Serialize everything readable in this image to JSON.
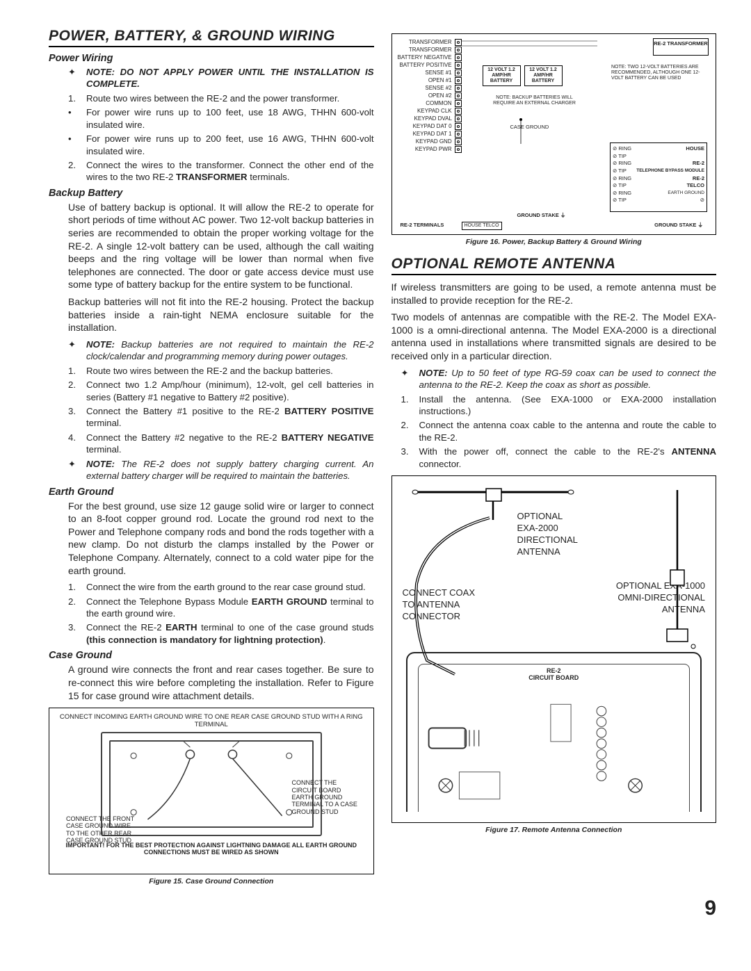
{
  "left": {
    "section_title": "POWER, BATTERY, & GROUND WIRING",
    "power_wiring": {
      "title": "Power Wiring",
      "note": "NOTE: DO NOT APPLY POWER UNTIL THE INSTALLATION IS COMPLETE.",
      "item1": "Route two wires between the RE-2 and the power transformer.",
      "bullet1": "For power wire runs up to 100 feet, use 18 AWG, THHN 600-volt insulated wire.",
      "bullet2": "For power wire runs up to 200 feet, use 16 AWG, THHN 600-volt insulated wire.",
      "item2a": "Connect the wires to the transformer. Connect the other end of the wires to the two RE-2 ",
      "item2b": "TRANSFORMER",
      "item2c": " terminals."
    },
    "backup": {
      "title": "Backup Battery",
      "p1": "Use of battery backup is optional. It will allow the RE-2 to operate for short periods of time without AC power. Two 12-volt backup batteries in series are recommended to obtain the proper working voltage for the RE-2. A single 12-volt battery can be used, although the call waiting beeps and the ring voltage will be lower than normal when five telephones are connected. The door or gate access device must use some type of battery backup for the entire system to be functional.",
      "p2": "Backup batteries will not fit into the RE-2 housing. Protect the backup batteries inside a rain-tight NEMA enclosure suitable for the installation.",
      "note1": "NOTE: Backup batteries are not required to maintain the RE-2 clock/calendar and programming memory during power outages.",
      "i1": "Route two wires between the RE-2 and the backup batteries.",
      "i2": "Connect two 1.2 Amp/hour (minimum), 12-volt, gel cell batteries in series (Battery #1 negative to Battery #2 positive).",
      "i3a": "Connect the Battery #1 positive to the RE-2 ",
      "i3b": "BATTERY POSITIVE",
      "i3c": " terminal.",
      "i4a": "Connect the Battery #2 negative to the RE-2 ",
      "i4b": "BATTERY NEGATIVE",
      "i4c": " terminal.",
      "note2": "NOTE: The RE-2 does not supply battery charging current. An external battery charger will be required to maintain the batteries."
    },
    "earth": {
      "title": "Earth Ground",
      "p1": "For the best ground, use size 12 gauge solid wire or larger to connect to an 8-foot copper ground rod. Locate the ground rod next to the Power and Telephone company rods and bond the rods together with a new clamp. Do not disturb the clamps installed by the Power or Telephone Company. Alternately, connect to a cold water pipe for the earth ground.",
      "i1": "Connect the wire from the earth ground to the rear case ground stud.",
      "i2a": "Connect the Telephone Bypass Module ",
      "i2b": "EARTH GROUND",
      "i2c": " terminal to the earth ground wire.",
      "i3a": "Connect the RE-2 ",
      "i3b": "EARTH",
      "i3c": " terminal to one of the case ground studs ",
      "i3d": "(this connection is mandatory for lightning protection)",
      "i3e": "."
    },
    "case": {
      "title": "Case Ground",
      "p1": "A ground wire connects the front and rear cases together. Be sure to re-connect this wire before completing the installation. Refer to Figure 15 for case ground wire attachment details."
    },
    "fig15": {
      "top": "CONNECT INCOMING EARTH GROUND WIRE TO ONE REAR CASE GROUND STUD WITH A RING TERMINAL",
      "left": "CONNECT THE FRONT CASE GROUND WIRE TO THE OTHER REAR CASE GROUND STUD",
      "right": "CONNECT THE CIRCUIT BOARD EARTH GROUND TERMINAL TO A CASE GROUND STUD",
      "warn": "IMPORTANT! FOR THE BEST PROTECTION AGAINST LIGHTNING DAMAGE ALL EARTH GROUND CONNECTIONS MUST BE WIRED AS SHOWN",
      "caption": "Figure 15. Case Ground Connection"
    }
  },
  "right": {
    "fig16": {
      "caption": "Figure 16. Power, Backup Battery & Ground Wiring",
      "terms": [
        "TRANSFORMER",
        "TRANSFORMER",
        "BATTERY NEGATIVE",
        "BATTERY POSITIVE",
        "SENSE #1",
        "OPEN #1",
        "SENSE #2",
        "OPEN #2",
        "COMMON",
        "KEYPAD CLK",
        "KEYPAD DVAL",
        "KEYPAD DAT 0",
        "KEYPAD DAT 1",
        "KEYPAD GND",
        "KEYPAD PWR"
      ],
      "bat1": "12 VOLT 1.2 AMP/HR BATTERY",
      "bat2": "12 VOLT 1.2 AMP/HR BATTERY",
      "re2t": "RE-2 TRANSFORMER",
      "tnote": "NOTE: TWO 12-VOLT BATTERIES ARE RECOMMENDED, ALTHOUGH ONE 12-VOLT BATTERY CAN BE USED",
      "bnote": "NOTE: BACKUP BATTERIES WILL REQUIRE AN EXTERNAL CHARGER",
      "caseg": "CASE GROUND",
      "re2term": "RE-2 TERMINALS",
      "gs": "GROUND STAKE",
      "gs2": "GROUND STAKE",
      "ht": "HOUSE   TELCO",
      "tel_house": "HOUSE",
      "tel_re2": "RE-2",
      "tel_tele": "TELEPHONE BYPASS MODULE",
      "tel_telco": "TELCO",
      "tel_earth": "EARTH GROUND",
      "ring": "RING",
      "tip": "TIP"
    },
    "section_title": "OPTIONAL REMOTE ANTENNA",
    "p1": "If wireless transmitters are going to be used, a remote antenna must be installed to provide reception for the RE-2.",
    "p2": "Two models of antennas are compatible with the RE-2. The Model EXA-1000 is a omni-directional antenna. The Model EXA-2000 is a directional antenna used in installations where transmitted signals are desired to be received only in a particular direction.",
    "note": "NOTE: Up to 50 feet of type RG-59 coax can be used to connect the antenna to the RE-2. Keep the coax as short as possible.",
    "i1": "Install the antenna. (See EXA-1000 or EXA-2000 installation instructions.)",
    "i2": "Connect the antenna coax cable to the antenna and route the cable to the RE-2.",
    "i3a": "With the power off, connect the cable to the RE-2's ",
    "i3b": "ANTENNA",
    "i3c": " connector.",
    "fig17": {
      "l1": "OPTIONAL EXA-2000 DIRECTIONAL ANTENNA",
      "l2": "CONNECT COAX TO ANTENNA CONNECTOR",
      "l3": "OPTIONAL EXA-1000 OMNI-DIRECTIONAL ANTENNA",
      "l4": "RE-2 CIRCUIT BOARD",
      "caption": "Figure 17. Remote Antenna Connection"
    }
  },
  "page_num": "9"
}
